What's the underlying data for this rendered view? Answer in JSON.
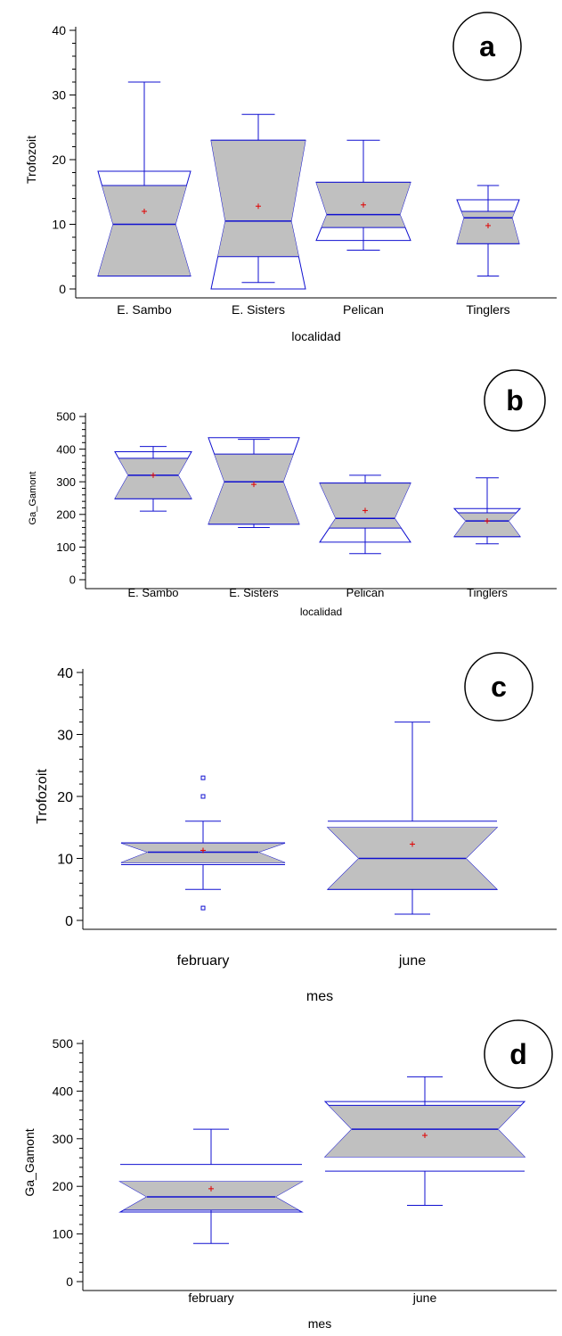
{
  "chart_data": [
    {
      "type": "boxplot",
      "panel_label": "a",
      "xlabel": "localidad",
      "ylabel": "Trofozoit",
      "ylim": [
        0,
        40
      ],
      "yticks": [
        0,
        10,
        20,
        30,
        40
      ],
      "categories": [
        "E. Sambo",
        "E. Sisters",
        "Pelican",
        "Tinglers"
      ],
      "boxes": [
        {
          "min": 2,
          "q1": 2,
          "median": 10,
          "q3": 16,
          "max": 32,
          "mean": 12,
          "notch_low": 2,
          "notch_high": 18.2,
          "outliers": []
        },
        {
          "min": 1,
          "q1": 5,
          "median": 10.5,
          "q3": 23,
          "max": 27,
          "mean": 12.8,
          "notch_low": 0,
          "notch_high": 23,
          "outliers": []
        },
        {
          "min": 6,
          "q1": 9.5,
          "median": 11.5,
          "q3": 16.5,
          "max": 23,
          "mean": 13,
          "notch_low": 7.5,
          "notch_high": 16.5,
          "outliers": []
        },
        {
          "min": 2,
          "q1": 7,
          "median": 11,
          "q3": 12,
          "max": 16,
          "mean": 9.8,
          "notch_low": 7,
          "notch_high": 13.8,
          "outliers": []
        }
      ]
    },
    {
      "type": "boxplot",
      "panel_label": "b",
      "xlabel": "localidad",
      "ylabel": "Ga_Gamont",
      "ylim": [
        0,
        500
      ],
      "yticks": [
        0,
        100,
        200,
        300,
        400,
        500
      ],
      "categories": [
        "E. Sambo",
        "E. Sisters",
        "Pelican",
        "Tinglers"
      ],
      "boxes": [
        {
          "min": 210,
          "q1": 248,
          "median": 320,
          "q3": 372,
          "max": 408,
          "mean": 320,
          "notch_low": 248,
          "notch_high": 392,
          "outliers": []
        },
        {
          "min": 160,
          "q1": 170,
          "median": 300,
          "q3": 385,
          "max": 430,
          "mean": 292,
          "notch_low": 170,
          "notch_high": 435,
          "outliers": []
        },
        {
          "min": 80,
          "q1": 158,
          "median": 188,
          "q3": 296,
          "max": 320,
          "mean": 212,
          "notch_low": 115,
          "notch_high": 296,
          "outliers": []
        },
        {
          "min": 110,
          "q1": 132,
          "median": 180,
          "q3": 205,
          "max": 312,
          "mean": 180,
          "notch_low": 132,
          "notch_high": 218,
          "outliers": []
        }
      ]
    },
    {
      "type": "boxplot",
      "panel_label": "c",
      "xlabel": "mes",
      "ylabel": "Trofozoit",
      "ylim": [
        0,
        40
      ],
      "yticks": [
        0,
        10,
        20,
        30,
        40
      ],
      "categories": [
        "february",
        "june"
      ],
      "boxes": [
        {
          "min": 5,
          "q1": 9,
          "median": 11,
          "q3": 12.5,
          "max": 16,
          "mean": 11.3,
          "notch_low": 9.3,
          "notch_high": 12.5,
          "outliers": [
            2,
            20,
            23
          ]
        },
        {
          "min": 1,
          "q1": 5,
          "median": 10,
          "q3": 16,
          "max": 32,
          "mean": 12.3,
          "notch_low": 5,
          "notch_high": 15,
          "outliers": []
        }
      ]
    },
    {
      "type": "boxplot",
      "panel_label": "d",
      "xlabel": "mes",
      "ylabel": "Ga_Gamont",
      "ylim": [
        0,
        500
      ],
      "yticks": [
        0,
        100,
        200,
        300,
        400,
        500
      ],
      "categories": [
        "february",
        "june"
      ],
      "boxes": [
        {
          "min": 80,
          "q1": 150,
          "median": 178,
          "q3": 246,
          "max": 320,
          "mean": 195,
          "notch_low": 146,
          "notch_high": 210,
          "outliers": []
        },
        {
          "min": 160,
          "q1": 232,
          "median": 320,
          "q3": 370,
          "max": 430,
          "mean": 307,
          "notch_low": 262,
          "notch_high": 378,
          "outliers": []
        }
      ]
    }
  ]
}
